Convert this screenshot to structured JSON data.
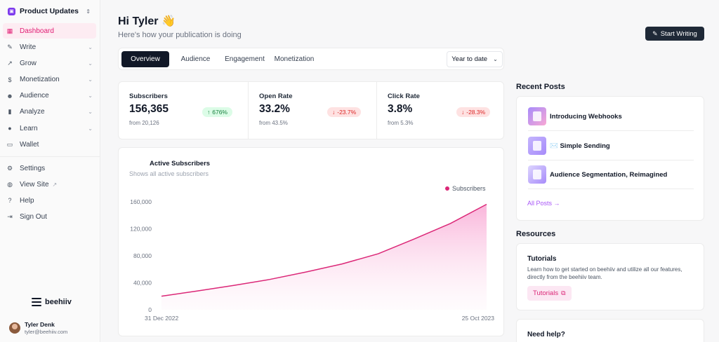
{
  "sidebar": {
    "publication": "Product Updates",
    "nav": [
      {
        "label": "Dashboard",
        "icon": "grid-icon",
        "active": true
      },
      {
        "label": "Write",
        "icon": "pencil-icon"
      },
      {
        "label": "Grow",
        "icon": "trend-icon"
      },
      {
        "label": "Monetization",
        "icon": "dollar-icon"
      },
      {
        "label": "Audience",
        "icon": "users-icon"
      },
      {
        "label": "Analyze",
        "icon": "bar-chart-icon"
      },
      {
        "label": "Learn",
        "icon": "bulb-icon"
      },
      {
        "label": "Wallet",
        "icon": "wallet-icon"
      }
    ],
    "secondary": [
      {
        "label": "Settings",
        "icon": "gear-icon"
      },
      {
        "label": "View Site",
        "icon": "globe-icon"
      },
      {
        "label": "Help",
        "icon": "help-icon"
      },
      {
        "label": "Sign Out",
        "icon": "sign-out-icon"
      }
    ],
    "brand": "beehiiv",
    "user": {
      "name": "Tyler Denk",
      "email": "tyler@beehiiv.com"
    }
  },
  "header": {
    "greeting": "Hi Tyler 👋",
    "subtitle": "Here's how your publication is doing",
    "start_writing": "Start Writing"
  },
  "tabs": [
    "Overview",
    "Audience",
    "Engagement",
    "Monetization"
  ],
  "date_range": "Year to date",
  "stats": [
    {
      "label": "Subscribers",
      "value": "156,365",
      "from": "from 20,126",
      "change": "676%",
      "direction": "up"
    },
    {
      "label": "Open Rate",
      "value": "33.2%",
      "from": "from 43.5%",
      "change": "-23.7%",
      "direction": "down"
    },
    {
      "label": "Click Rate",
      "value": "3.8%",
      "from": "from 5.3%",
      "change": "-28.3%",
      "direction": "down"
    }
  ],
  "chart": {
    "title": "Active Subscribers",
    "subtitle": "Shows all active subscribers",
    "legend": "Subscribers",
    "accent": "#db2777"
  },
  "chart_data": {
    "type": "area",
    "title": "Active Subscribers",
    "series": [
      {
        "name": "Subscribers",
        "values": [
          20126,
          28000,
          36000,
          45000,
          56000,
          68000,
          83000,
          105000,
          128000,
          156365
        ]
      }
    ],
    "x": [
      0,
      1,
      2,
      3,
      4,
      5,
      6,
      7,
      8,
      9
    ],
    "x_tick_labels": [
      "31 Dec 2022",
      "25 Oct 2023"
    ],
    "y_ticks": [
      "0",
      "40,000",
      "80,000",
      "120,000",
      "160,000"
    ],
    "ylim": [
      0,
      160000
    ],
    "legend": "top-right",
    "grid": false
  },
  "recent_posts": {
    "title": "Recent Posts",
    "posts": [
      "Introducing Webhooks",
      "✉️ Simple Sending",
      "Audience Segmentation, Reimagined"
    ],
    "all_posts": "All Posts →"
  },
  "resources": {
    "title": "Resources",
    "tutorials_title": "Tutorials",
    "tutorials_desc": "Learn how to get started on beehiiv and utilize all our features, directly from the beehiiv team.",
    "tutorials_button": "Tutorials"
  },
  "help": {
    "title": "Need help?"
  }
}
